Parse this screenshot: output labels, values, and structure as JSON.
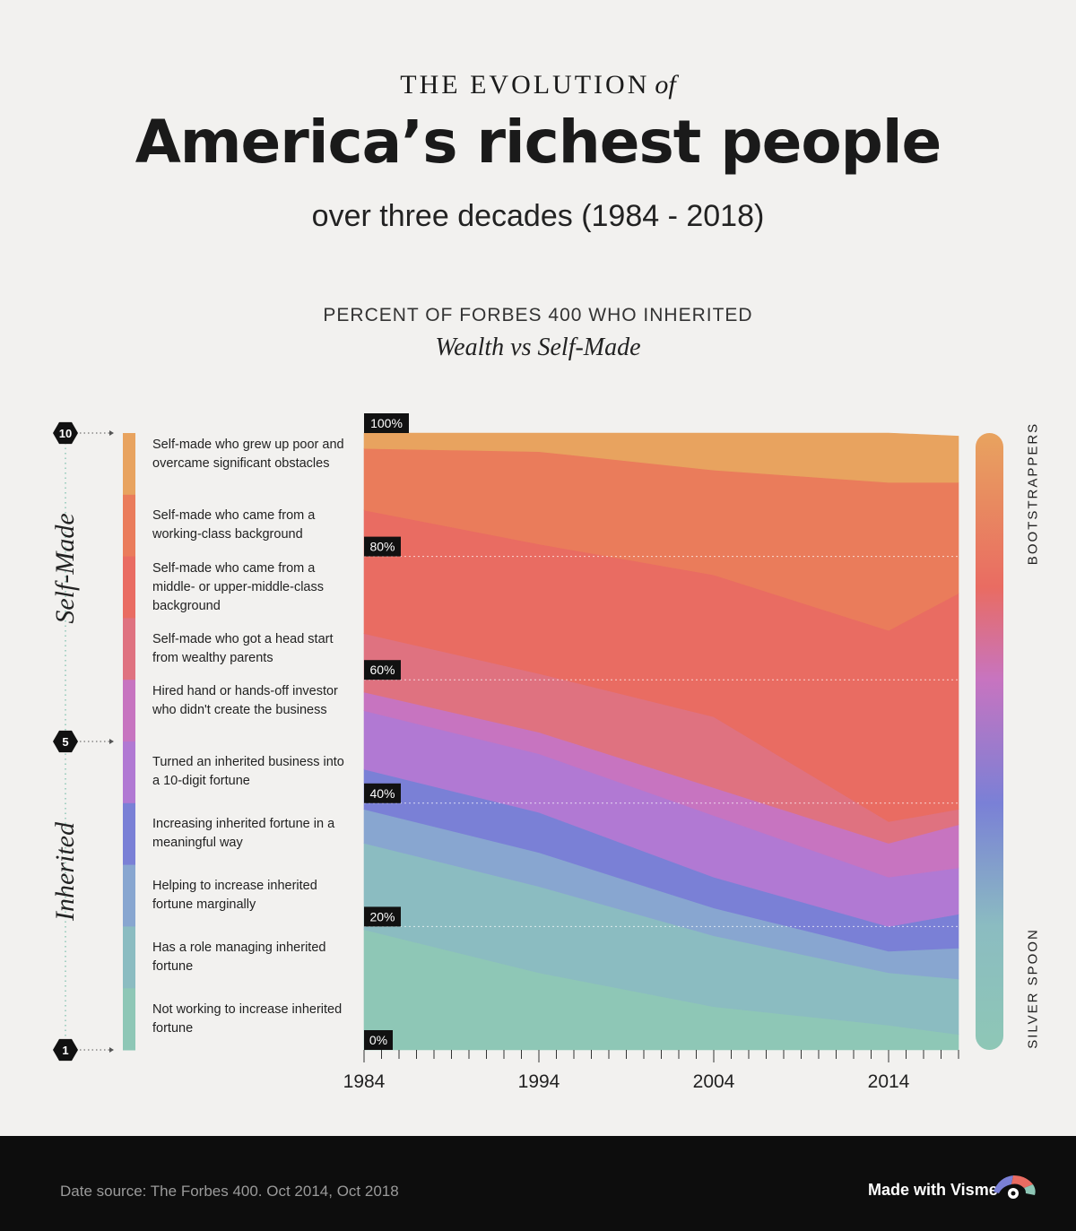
{
  "header": {
    "kicker": "THE EVOLUTION",
    "kicker_of": "of",
    "title": "America’s richest people",
    "subtitle": "over three decades (1984 - 2018)"
  },
  "chart_heading": "PERCENT OF FORBES 400 WHO INHERITED",
  "chart_subheading": "Wealth vs Self-Made",
  "scale": {
    "labels": [
      "10",
      "5",
      "1"
    ],
    "self_made_label": "Self-Made",
    "inherited_label": "Inherited"
  },
  "legend": [
    {
      "score": 10,
      "label": "Self-made who grew up poor and overcame significant obstacles",
      "color": "#e8a35f"
    },
    {
      "score": 9,
      "label": "Self-made who came from a working-class background",
      "color": "#ea7c5b"
    },
    {
      "score": 8,
      "label": "Self-made who came from a middle- or upper-middle-class background",
      "color": "#e96c62"
    },
    {
      "score": 7,
      "label": "Self-made who got a head start from wealthy parents",
      "color": "#df7280"
    },
    {
      "score": 6,
      "label": "Hired hand or hands-off investor who didn't create the business",
      "color": "#c774c0"
    },
    {
      "score": 5,
      "label": "Turned an inherited business into a 10-digit fortune",
      "color": "#b179d3"
    },
    {
      "score": 4,
      "label": "Increasing inherited fortune in a meaningful way",
      "color": "#7a80d6"
    },
    {
      "score": 3,
      "label": "Helping to increase inherited fortune marginally",
      "color": "#88a6d0"
    },
    {
      "score": 2,
      "label": "Has a role managing inherited fortune",
      "color": "#8bbcc1"
    },
    {
      "score": 1,
      "label": "Not working to increase inherited fortune",
      "color": "#8ec7b6"
    }
  ],
  "right_labels": {
    "top": "BOOTSTRAPPERS",
    "bottom": "SILVER SPOON"
  },
  "chart_data": {
    "type": "area",
    "stacked": true,
    "x": [
      1984,
      1994,
      2004,
      2014,
      2018
    ],
    "x_ticks": [
      "1984",
      "1994",
      "2004",
      "2014"
    ],
    "y_ticks": [
      "0%",
      "20%",
      "40%",
      "60%",
      "80%",
      "100%"
    ],
    "ylim": [
      0,
      100
    ],
    "series": [
      {
        "name": "Not working to increase inherited fortune",
        "values": [
          19.5,
          12.5,
          7,
          4,
          2.5
        ]
      },
      {
        "name": "Has a role managing inherited fortune",
        "values": [
          14,
          14,
          11.5,
          8.5,
          9
        ]
      },
      {
        "name": "Helping to increase inherited fortune marginally",
        "values": [
          5.5,
          5.5,
          4.5,
          3.5,
          5
        ]
      },
      {
        "name": "Increasing inherited fortune in a meaningful way",
        "values": [
          6.5,
          6.5,
          5,
          4,
          5.5
        ]
      },
      {
        "name": "Turned an inherited business into a 10-digit fortune",
        "values": [
          9.5,
          9.5,
          10,
          8,
          7.5
        ]
      },
      {
        "name": "Hired hand or hands-off investor who didn't create the business",
        "values": [
          3,
          3.5,
          4.5,
          5.5,
          7
        ]
      },
      {
        "name": "Self-made who got a head start from wealthy parents",
        "values": [
          9.5,
          9.5,
          11.5,
          3.5,
          2.5
        ]
      },
      {
        "name": "Self-made who came from a middle- or upper-middle-class background",
        "values": [
          20,
          21,
          23,
          31,
          35
        ]
      },
      {
        "name": "Self-made who came from a working-class background",
        "values": [
          10,
          15,
          17,
          24,
          18
        ]
      },
      {
        "name": "Self-made who grew up poor and overcame significant obstacles",
        "values": [
          2.5,
          3,
          6,
          8,
          7.5
        ]
      }
    ]
  },
  "footer": {
    "source": "Date source: The Forbes 400. Oct 2014, Oct 2018",
    "brand": "Made with Visme"
  }
}
